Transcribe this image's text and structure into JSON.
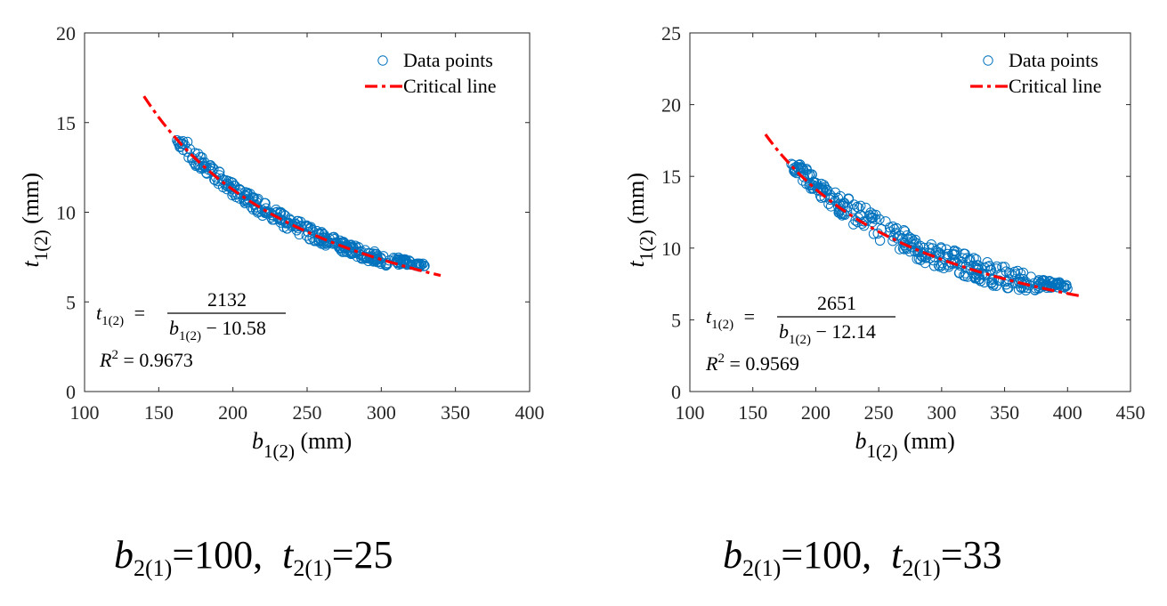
{
  "chart_data": [
    {
      "type": "scatter",
      "title": "",
      "xlabel_var": "b",
      "xlabel_sub": "1(2)",
      "xlabel_unit": "(mm)",
      "ylabel_var": "t",
      "ylabel_sub": "1(2)",
      "ylabel_unit": "(mm)",
      "xlim": [
        100,
        400
      ],
      "ylim": [
        0,
        20
      ],
      "xticks": [
        100,
        150,
        200,
        250,
        300,
        350,
        400
      ],
      "yticks": [
        0,
        5,
        10,
        15,
        20
      ],
      "grid": false,
      "legend_position": "top-right",
      "series": [
        {
          "name": "Data points",
          "kind": "scatter",
          "color": "#0072bd",
          "x_range": [
            162,
            330
          ],
          "band": [
            [
              162,
              14.3,
              13.8
            ],
            [
              170,
              13.9,
              12.9
            ],
            [
              180,
              13.0,
              12.2
            ],
            [
              190,
              12.4,
              11.6
            ],
            [
              200,
              11.7,
              10.9
            ],
            [
              220,
              10.6,
              9.8
            ],
            [
              240,
              9.7,
              8.9
            ],
            [
              260,
              8.9,
              8.2
            ],
            [
              280,
              8.2,
              7.6
            ],
            [
              300,
              7.7,
              7.0
            ],
            [
              315,
              7.4,
              7.1
            ],
            [
              330,
              7.1,
              6.9
            ]
          ]
        },
        {
          "name": "Critical line",
          "kind": "line",
          "style": "dash-dot",
          "color": "#ff0000",
          "numerator": 2132,
          "offset": 10.58,
          "x_range": [
            140,
            340
          ]
        }
      ],
      "annotation": {
        "lhs": "t",
        "lhs_sub": "1(2)",
        "numerator": "2132",
        "denominator": "b",
        "denominator_sub": "1(2)",
        "denominator_rest": "− 10.58",
        "r2_label": "R",
        "r2_sup": "2",
        "r2_value": "= 0.9673"
      }
    },
    {
      "type": "scatter",
      "title": "",
      "xlabel_var": "b",
      "xlabel_sub": "1(2)",
      "xlabel_unit": "(mm)",
      "ylabel_var": "t",
      "ylabel_sub": "1(2)",
      "ylabel_unit": "(mm)",
      "xlim": [
        100,
        450
      ],
      "ylim": [
        0,
        25
      ],
      "xticks": [
        100,
        150,
        200,
        250,
        300,
        350,
        400,
        450
      ],
      "yticks": [
        0,
        5,
        10,
        15,
        20,
        25
      ],
      "grid": false,
      "legend_position": "top-right",
      "series": [
        {
          "name": "Data points",
          "kind": "scatter",
          "color": "#0072bd",
          "x_range": [
            180,
            400
          ],
          "band": [
            [
              180,
              16.2,
              15.6
            ],
            [
              190,
              15.8,
              14.6
            ],
            [
              200,
              15.0,
              13.8
            ],
            [
              220,
              13.8,
              12.3
            ],
            [
              240,
              12.8,
              11.0
            ],
            [
              260,
              11.8,
              10.0
            ],
            [
              280,
              11.0,
              9.2
            ],
            [
              300,
              10.2,
              8.5
            ],
            [
              320,
              9.6,
              8.0
            ],
            [
              340,
              9.0,
              7.4
            ],
            [
              360,
              8.5,
              7.0
            ],
            [
              370,
              8.1,
              7.0
            ],
            [
              385,
              7.8,
              7.2
            ],
            [
              400,
              7.5,
              7.1
            ]
          ]
        },
        {
          "name": "Critical line",
          "kind": "line",
          "style": "dash-dot",
          "color": "#ff0000",
          "numerator": 2651,
          "offset": 12.14,
          "x_range": [
            160,
            410
          ]
        }
      ],
      "annotation": {
        "lhs": "t",
        "lhs_sub": "1(2)",
        "numerator": "2651",
        "denominator": "b",
        "denominator_sub": "1(2)",
        "denominator_rest": "− 12.14",
        "r2_label": "R",
        "r2_sup": "2",
        "r2_value": "= 0.9569"
      }
    }
  ],
  "captions": [
    {
      "b_var": "b",
      "b_sub": "2(1)",
      "b_val": "=100",
      "sep": ",",
      "t_var": "t",
      "t_sub": "2(1)",
      "t_val": "=25"
    },
    {
      "b_var": "b",
      "b_sub": "2(1)",
      "b_val": "=100",
      "sep": ",",
      "t_var": "t",
      "t_sub": "2(1)",
      "t_val": "=33"
    }
  ]
}
